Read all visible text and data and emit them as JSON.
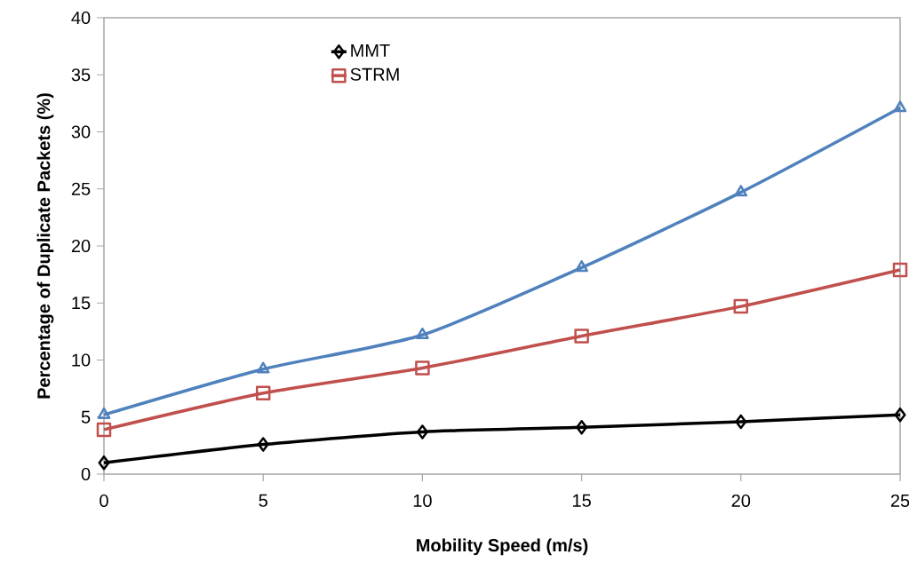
{
  "chart_data": {
    "type": "line",
    "xlabel": "Mobility Speed (m/s)",
    "ylabel": "Percentage of Duplicate Packets (%)",
    "x": [
      0,
      5,
      10,
      15,
      20,
      25
    ],
    "series": [
      {
        "name": "MMT",
        "color": "#000000",
        "marker": "diamond",
        "values": [
          1.0,
          2.6,
          3.7,
          4.1,
          4.6,
          5.2
        ]
      },
      {
        "name": "STRM",
        "color": "#c0504d",
        "marker": "square",
        "values": [
          3.9,
          7.1,
          9.3,
          12.1,
          14.7,
          17.9
        ]
      },
      {
        "color": "#4f81bd",
        "marker": "triangle",
        "values": [
          5.2,
          9.2,
          12.2,
          18.1,
          24.7,
          32.1
        ]
      }
    ],
    "xlim": [
      0,
      25
    ],
    "xticks": [
      0,
      5,
      10,
      15,
      20,
      25
    ],
    "ylim": [
      0,
      40
    ],
    "yticks": [
      0,
      5,
      10,
      15,
      20,
      25,
      30,
      35,
      40
    ],
    "grid": false,
    "legend": "top left",
    "line_style": "solid"
  }
}
